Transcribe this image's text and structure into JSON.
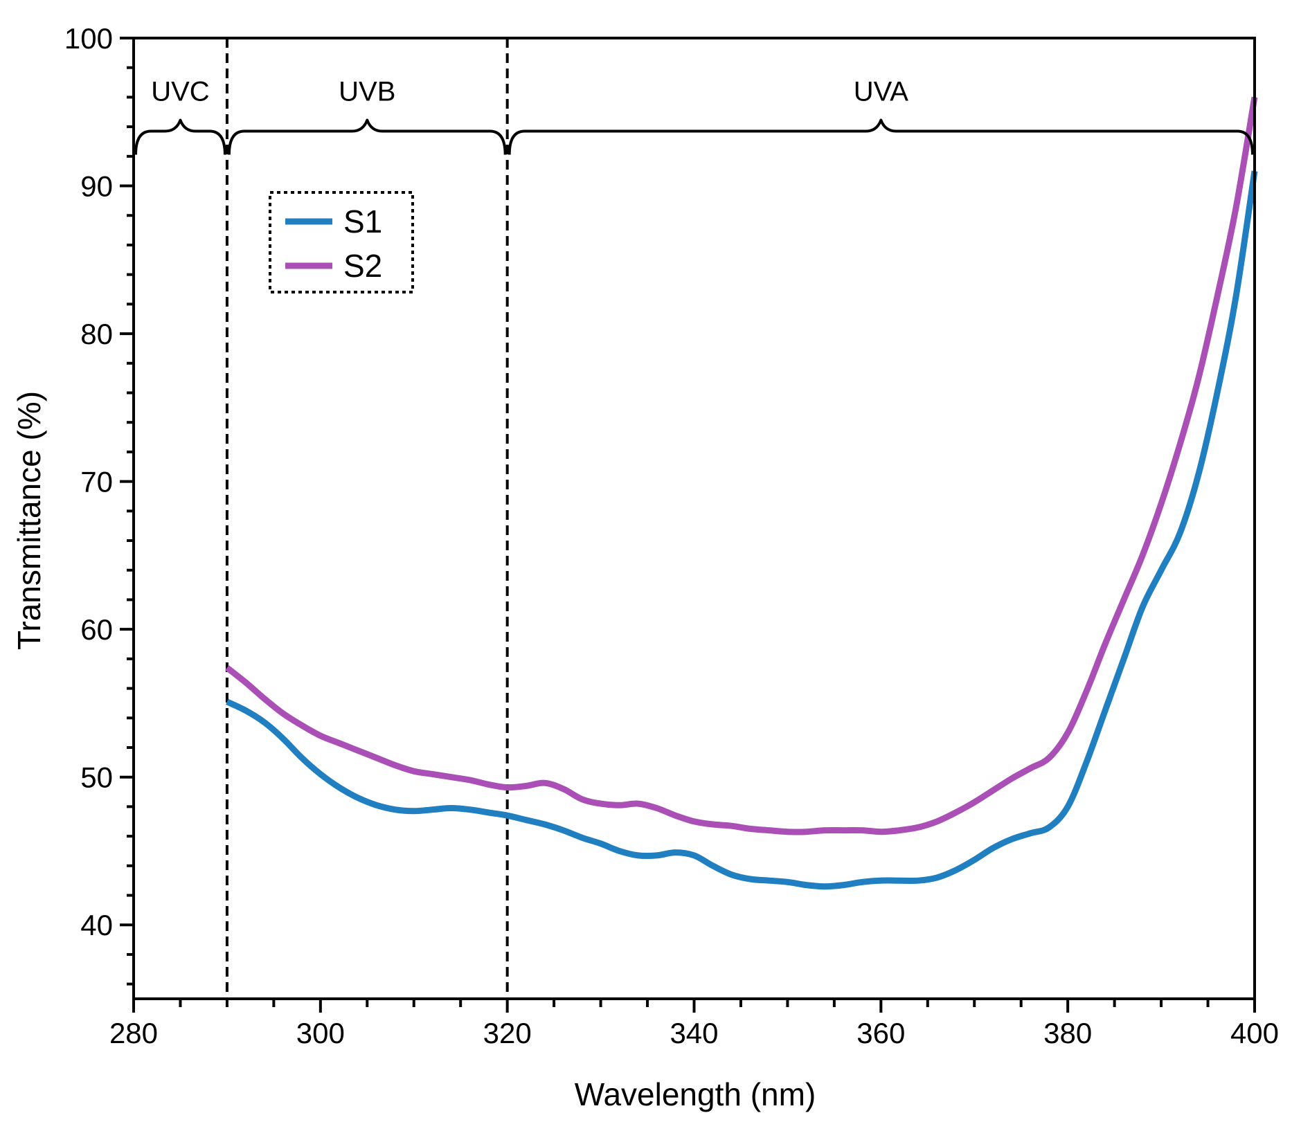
{
  "chart_data": {
    "type": "line",
    "title": "",
    "xlabel": "Wavelength (nm)",
    "ylabel": "Transmittance (%)",
    "xlim": [
      280,
      400
    ],
    "ylim": [
      35,
      100
    ],
    "xticks": [
      280,
      300,
      320,
      340,
      360,
      380,
      400
    ],
    "yticks": [
      40,
      50,
      60,
      70,
      80,
      90,
      100
    ],
    "grid": false,
    "legend_position": "upper-left",
    "regions": [
      {
        "label": "UVC",
        "start": 280,
        "end": 290
      },
      {
        "label": "UVB",
        "start": 290,
        "end": 320
      },
      {
        "label": "UVA",
        "start": 320,
        "end": 400
      }
    ],
    "dividers": [
      290,
      320
    ],
    "series": [
      {
        "name": "S1",
        "color": "#1f7fc0",
        "x": [
          290,
          292,
          294,
          296,
          298,
          300,
          302,
          304,
          306,
          308,
          310,
          312,
          314,
          316,
          318,
          320,
          322,
          324,
          326,
          328,
          330,
          332,
          334,
          336,
          338,
          340,
          342,
          344,
          346,
          348,
          350,
          352,
          354,
          356,
          358,
          360,
          362,
          364,
          366,
          368,
          370,
          372,
          374,
          376,
          378,
          380,
          382,
          384,
          386,
          388,
          390,
          392,
          394,
          396,
          398,
          400
        ],
        "y": [
          55.1,
          54.5,
          53.7,
          52.6,
          51.3,
          50.2,
          49.3,
          48.6,
          48.1,
          47.8,
          47.7,
          47.8,
          47.9,
          47.8,
          47.6,
          47.4,
          47.1,
          46.8,
          46.4,
          45.9,
          45.5,
          45.0,
          44.7,
          44.7,
          44.9,
          44.7,
          44.0,
          43.4,
          43.1,
          43.0,
          42.9,
          42.7,
          42.6,
          42.7,
          42.9,
          43.0,
          43.0,
          43.0,
          43.2,
          43.7,
          44.4,
          45.2,
          45.8,
          46.2,
          46.6,
          48.0,
          51.0,
          54.5,
          58.0,
          61.5,
          64.0,
          66.5,
          70.5,
          76.0,
          82.5,
          91.0
        ]
      },
      {
        "name": "S2",
        "color": "#a94fb5",
        "x": [
          290,
          292,
          294,
          296,
          298,
          300,
          302,
          304,
          306,
          308,
          310,
          312,
          314,
          316,
          318,
          320,
          322,
          324,
          326,
          328,
          330,
          332,
          334,
          336,
          338,
          340,
          342,
          344,
          346,
          348,
          350,
          352,
          354,
          356,
          358,
          360,
          362,
          364,
          366,
          368,
          370,
          372,
          374,
          376,
          378,
          380,
          382,
          384,
          386,
          388,
          390,
          392,
          394,
          396,
          398,
          400
        ],
        "y": [
          57.4,
          56.4,
          55.3,
          54.3,
          53.5,
          52.8,
          52.3,
          51.8,
          51.3,
          50.8,
          50.4,
          50.2,
          50.0,
          49.8,
          49.5,
          49.3,
          49.4,
          49.6,
          49.2,
          48.5,
          48.2,
          48.1,
          48.2,
          47.9,
          47.4,
          47.0,
          46.8,
          46.7,
          46.5,
          46.4,
          46.3,
          46.3,
          46.4,
          46.4,
          46.4,
          46.3,
          46.4,
          46.6,
          47.0,
          47.6,
          48.3,
          49.1,
          49.9,
          50.6,
          51.3,
          53.0,
          55.8,
          59.0,
          62.0,
          65.0,
          68.5,
          72.5,
          77.0,
          82.5,
          88.5,
          96.0
        ]
      }
    ]
  }
}
